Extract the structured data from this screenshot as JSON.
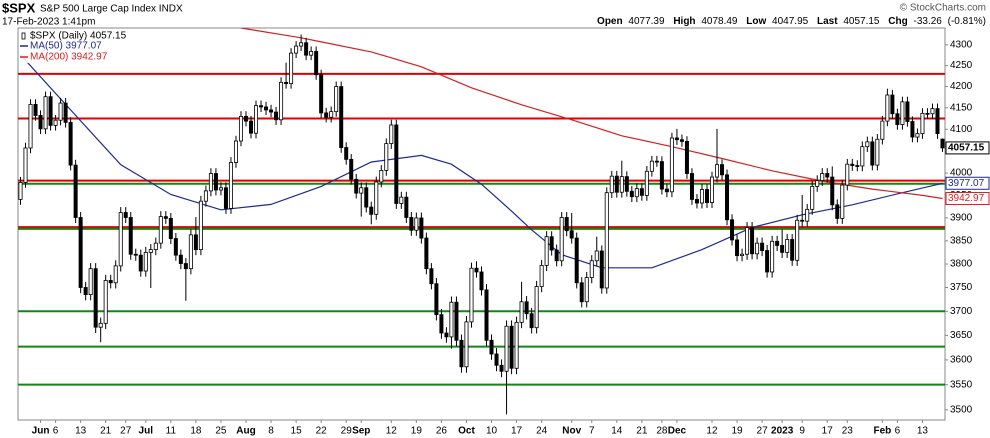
{
  "chart_data": {
    "type": "candlestick",
    "title": "$SPX",
    "subtitle": "S&P 500 Large Cap Index INDX",
    "date": "17-Feb-2023 1:41pm",
    "credit": "© StockCharts.com",
    "quote": {
      "labels": [
        "Open",
        "High",
        "Low",
        "Last",
        "Chg"
      ],
      "change": "-33.26",
      "change_pct": "(-0.81%)"
    },
    "series_name": "$SPX (Daily) 4057.15",
    "log": true,
    "grid": false,
    "up_color": "#ffffff",
    "down_color": "#000000",
    "ylim": [
      3480,
      4341
    ],
    "yticks": [
      3500,
      3550,
      3600,
      3650,
      3700,
      3750,
      3800,
      3850,
      3900,
      3950,
      4000,
      4050,
      4100,
      4150,
      4200,
      4250,
      4300
    ],
    "categories": [
      null,
      null,
      null,
      null,
      "Jun",
      null,
      null,
      "6",
      null,
      null,
      null,
      null,
      "13",
      null,
      null,
      null,
      null,
      "21",
      null,
      null,
      null,
      "27",
      null,
      null,
      null,
      "Jul",
      null,
      null,
      null,
      null,
      "11",
      null,
      null,
      null,
      null,
      "18",
      null,
      null,
      null,
      null,
      "25",
      null,
      null,
      null,
      null,
      "Aug",
      null,
      null,
      null,
      null,
      "8",
      null,
      null,
      null,
      null,
      "15",
      null,
      null,
      null,
      null,
      "22",
      null,
      null,
      null,
      null,
      "29",
      null,
      null,
      "Sep",
      null,
      null,
      null,
      null,
      null,
      "12",
      null,
      null,
      null,
      null,
      "19",
      null,
      null,
      null,
      null,
      "26",
      null,
      null,
      null,
      null,
      "Oct",
      null,
      null,
      null,
      null,
      "10",
      null,
      null,
      null,
      null,
      "17",
      null,
      null,
      null,
      null,
      "24",
      null,
      null,
      null,
      null,
      null,
      "Nov",
      null,
      null,
      null,
      "7",
      null,
      null,
      null,
      null,
      "14",
      null,
      null,
      null,
      null,
      "21",
      null,
      null,
      null,
      "28",
      null,
      null,
      "Dec",
      null,
      null,
      null,
      null,
      null,
      null,
      "12",
      null,
      null,
      null,
      null,
      "19",
      null,
      null,
      null,
      null,
      "27",
      null,
      null,
      null,
      "2023",
      null,
      null,
      null,
      "9",
      null,
      null,
      null,
      null,
      "17",
      null,
      null,
      null,
      "23",
      null,
      null,
      null,
      null,
      null,
      null,
      "Feb",
      null,
      null,
      "6",
      null,
      null,
      null,
      null,
      "13",
      null,
      null,
      null,
      null
    ],
    "open": [
      3941,
      3979,
      4057,
      4158,
      4132,
      4101,
      4176,
      4109,
      4121,
      4161,
      4116,
      4018,
      3901,
      3750,
      3735,
      3790,
      3667,
      3675,
      3765,
      3760,
      3796,
      3912,
      3901,
      3821,
      3819,
      3785,
      3825,
      3831,
      3845,
      3903,
      3899,
      3855,
      3819,
      3801,
      3790,
      3863,
      3831,
      3937,
      3960,
      3999,
      3962,
      3967,
      3921,
      4024,
      4073,
      4130,
      4119,
      4091,
      4155,
      4152,
      4145,
      4140,
      4122,
      4210,
      4207,
      4280,
      4297,
      4305,
      4275,
      4284,
      4228,
      4138,
      4128,
      4141,
      4200,
      4058,
      4031,
      3986,
      3955,
      3967,
      3924,
      3908,
      3980,
      4006,
      4067,
      4110,
      3932,
      3946,
      3901,
      3873,
      3900,
      3856,
      3790,
      3758,
      3693,
      3655,
      3647,
      3719,
      3640,
      3586,
      3678,
      3791,
      3783,
      3745,
      3640,
      3612,
      3589,
      3577,
      3669,
      3583,
      3677,
      3720,
      3695,
      3666,
      3752,
      3797,
      3859,
      3830,
      3807,
      3901,
      3872,
      3856,
      3760,
      3720,
      3771,
      3807,
      3828,
      3749,
      3956,
      3993,
      3957,
      3992,
      3959,
      3947,
      3965,
      3950,
      4004,
      4027,
      4026,
      3964,
      3958,
      4080,
      4076,
      4072,
      3999,
      3941,
      3933,
      3963,
      3934,
      3991,
      4019,
      3996,
      3896,
      3852,
      3818,
      3821,
      3879,
      3822,
      3845,
      3829,
      3783,
      3849,
      3840,
      3825,
      3853,
      3808,
      3895,
      3893,
      3919,
      3970,
      3983,
      3999,
      3991,
      3929,
      3899,
      3973,
      4020,
      4017,
      4016,
      4060,
      4071,
      4018,
      4077,
      4119,
      4180,
      4136,
      4111,
      4164,
      4118,
      4082,
      4090,
      4137,
      4136,
      4148,
      4077.39
    ],
    "high": [
      3991,
      4069,
      4170,
      4170,
      4144,
      4188,
      4188,
      4133,
      4173,
      4173,
      4128,
      4030,
      3913,
      3762,
      3802,
      3802,
      3687,
      3777,
      3777,
      3808,
      3924,
      3924,
      3913,
      3833,
      3831,
      3837,
      3843,
      3857,
      3915,
      3915,
      3911,
      3867,
      3831,
      3813,
      3875,
      3902,
      3949,
      3972,
      4011,
      4011,
      3979,
      3979,
      4036,
      4085,
      4142,
      4142,
      4131,
      4167,
      4167,
      4164,
      4157,
      4152,
      4222,
      4257,
      4292,
      4309,
      4325,
      4317,
      4296,
      4296,
      4240,
      4150,
      4153,
      4212,
      4212,
      4070,
      4043,
      3998,
      3979,
      3979,
      3936,
      3992,
      4018,
      4079,
      4122,
      4122,
      3958,
      3958,
      3913,
      3912,
      3912,
      3868,
      3802,
      3770,
      3705,
      3667,
      3731,
      3731,
      3652,
      3690,
      3803,
      3806,
      3795,
      3757,
      3652,
      3624,
      3601,
      3681,
      3681,
      3689,
      3762,
      3732,
      3707,
      3764,
      3809,
      3871,
      3871,
      3842,
      3913,
      3913,
      3911,
      3868,
      3772,
      3783,
      3819,
      3859,
      3840,
      3968,
      4005,
      4005,
      4028,
      4004,
      3971,
      3977,
      3977,
      4016,
      4039,
      4039,
      4038,
      3976,
      4092,
      4101,
      4088,
      4084,
      4011,
      3953,
      3975,
      3975,
      4003,
      4101,
      4031,
      4008,
      3908,
      3864,
      3833,
      3891,
      3891,
      3857,
      3857,
      3841,
      3861,
      3861,
      3875,
      3865,
      3865,
      3907,
      3951,
      3931,
      3982,
      3995,
      4011,
      4011,
      4015,
      3941,
      3985,
      4032,
      4032,
      4029,
      4072,
      4083,
      4083,
      4089,
      4131,
      4195,
      4192,
      4148,
      4176,
      4176,
      4130,
      4102,
      4149,
      4149,
      4160,
      4160,
      4078.49
    ],
    "low": [
      3929,
      3967,
      4045,
      4120,
      4089,
      4089,
      4097,
      4097,
      4109,
      4104,
      4006,
      3889,
      3738,
      3723,
      3723,
      3655,
      3636,
      3663,
      3748,
      3748,
      3784,
      3889,
      3809,
      3807,
      3773,
      3773,
      3749,
      3819,
      3833,
      3887,
      3843,
      3807,
      3789,
      3722,
      3778,
      3819,
      3819,
      3925,
      3948,
      3950,
      3950,
      3909,
      3909,
      4012,
      4061,
      4107,
      4079,
      4079,
      4140,
      4133,
      4128,
      4110,
      4110,
      4195,
      4195,
      4268,
      4285,
      4263,
      4263,
      4216,
      4126,
      4116,
      4116,
      4129,
      4046,
      4019,
      3974,
      3943,
      3903,
      3912,
      3886,
      3896,
      3968,
      3994,
      4055,
      3920,
      3920,
      3889,
      3861,
      3861,
      3844,
      3778,
      3746,
      3681,
      3643,
      3635,
      3623,
      3628,
      3574,
      3574,
      3666,
      3771,
      3733,
      3628,
      3600,
      3577,
      3565,
      3491,
      3571,
      3571,
      3665,
      3683,
      3654,
      3654,
      3740,
      3785,
      3818,
      3795,
      3795,
      3860,
      3844,
      3748,
      3708,
      3708,
      3759,
      3795,
      3737,
      3737,
      3944,
      3945,
      3945,
      3947,
      3935,
      3935,
      3938,
      3938,
      3992,
      4014,
      3952,
      3946,
      3946,
      4064,
      4060,
      3987,
      3929,
      3921,
      3921,
      3922,
      3922,
      3979,
      3984,
      3884,
      3840,
      3806,
      3806,
      3809,
      3810,
      3810,
      3817,
      3771,
      3771,
      3828,
      3813,
      3813,
      3796,
      3796,
      3881,
      3881,
      3907,
      3958,
      3971,
      3979,
      3917,
      3887,
      3887,
      3961,
      4005,
      4004,
      4004,
      4048,
      4006,
      4006,
      4065,
      4107,
      4124,
      4099,
      4099,
      4106,
      4070,
      4070,
      4078,
      4124,
      4124,
      4078,
      4047.95
    ],
    "close": [
      3979,
      4057,
      4158,
      4132,
      4101,
      4176,
      4109,
      4121,
      4161,
      4116,
      4018,
      3901,
      3750,
      3735,
      3790,
      3667,
      3675,
      3765,
      3760,
      3796,
      3912,
      3901,
      3821,
      3819,
      3785,
      3825,
      3831,
      3845,
      3903,
      3899,
      3855,
      3819,
      3801,
      3790,
      3863,
      3831,
      3937,
      3960,
      3999,
      3962,
      3967,
      3921,
      4024,
      4073,
      4130,
      4119,
      4091,
      4155,
      4152,
      4145,
      4140,
      4122,
      4210,
      4207,
      4280,
      4297,
      4305,
      4275,
      4284,
      4228,
      4138,
      4128,
      4141,
      4200,
      4058,
      4031,
      3986,
      3955,
      3967,
      3924,
      3908,
      3980,
      4006,
      4067,
      4110,
      3932,
      3946,
      3901,
      3873,
      3900,
      3856,
      3790,
      3758,
      3693,
      3655,
      3647,
      3719,
      3640,
      3586,
      3678,
      3791,
      3783,
      3745,
      3640,
      3612,
      3589,
      3577,
      3669,
      3583,
      3677,
      3720,
      3695,
      3666,
      3752,
      3797,
      3859,
      3830,
      3807,
      3901,
      3872,
      3856,
      3760,
      3720,
      3771,
      3807,
      3828,
      3749,
      3956,
      3993,
      3957,
      3992,
      3959,
      3947,
      3965,
      3950,
      4004,
      4027,
      4026,
      3964,
      3958,
      4080,
      4076,
      4072,
      3999,
      3941,
      3933,
      3963,
      3934,
      3991,
      4019,
      3996,
      3896,
      3852,
      3818,
      3821,
      3879,
      3822,
      3845,
      3829,
      3783,
      3849,
      3840,
      3825,
      3853,
      3808,
      3895,
      3893,
      3919,
      3970,
      3983,
      3999,
      3991,
      3929,
      3899,
      3973,
      4020,
      4017,
      4016,
      4060,
      4071,
      4018,
      4077,
      4119,
      4180,
      4136,
      4111,
      4164,
      4118,
      4082,
      4090,
      4137,
      4136,
      4148,
      4090,
      4057.15
    ],
    "lines": [
      {
        "name": "MA(50) 3977.07",
        "color": "#1c2a94",
        "x": [
          0,
          10,
          20,
          30,
          40,
          50,
          60,
          70,
          80,
          86,
          92,
          98,
          102,
          108,
          116,
          126,
          136,
          146,
          156,
          166,
          176,
          184
        ],
        "values": [
          4276,
          4145,
          4019,
          3952,
          3918,
          3930,
          3970,
          4025,
          4040,
          4020,
          3975,
          3915,
          3874,
          3820,
          3792,
          3792,
          3831,
          3879,
          3907,
          3929,
          3956,
          3977.07
        ]
      },
      {
        "name": "MA(200) 3942.97",
        "color": "#d42020",
        "x": [
          44,
          56,
          60,
          70,
          80,
          90,
          100,
          110,
          120,
          130,
          140,
          150,
          160,
          170,
          180,
          184
        ],
        "values": [
          4341,
          4317,
          4307,
          4283,
          4247,
          4197,
          4157,
          4122,
          4085,
          4060,
          4033,
          4005,
          3982,
          3964,
          3950,
          3942.97
        ]
      }
    ],
    "levels": [
      {
        "value": 4230,
        "color": "#e00000"
      },
      {
        "value": 4125,
        "color": "#e00000"
      },
      {
        "value": 3983,
        "color": "#e00000"
      },
      {
        "value": 3976,
        "color": "#118811"
      },
      {
        "value": 3880,
        "color": "#e00000"
      },
      {
        "value": 3876,
        "color": "#118811"
      },
      {
        "value": 3700,
        "color": "#118811"
      },
      {
        "value": 3627,
        "color": "#118811"
      },
      {
        "value": 3550,
        "color": "#118811"
      }
    ]
  }
}
